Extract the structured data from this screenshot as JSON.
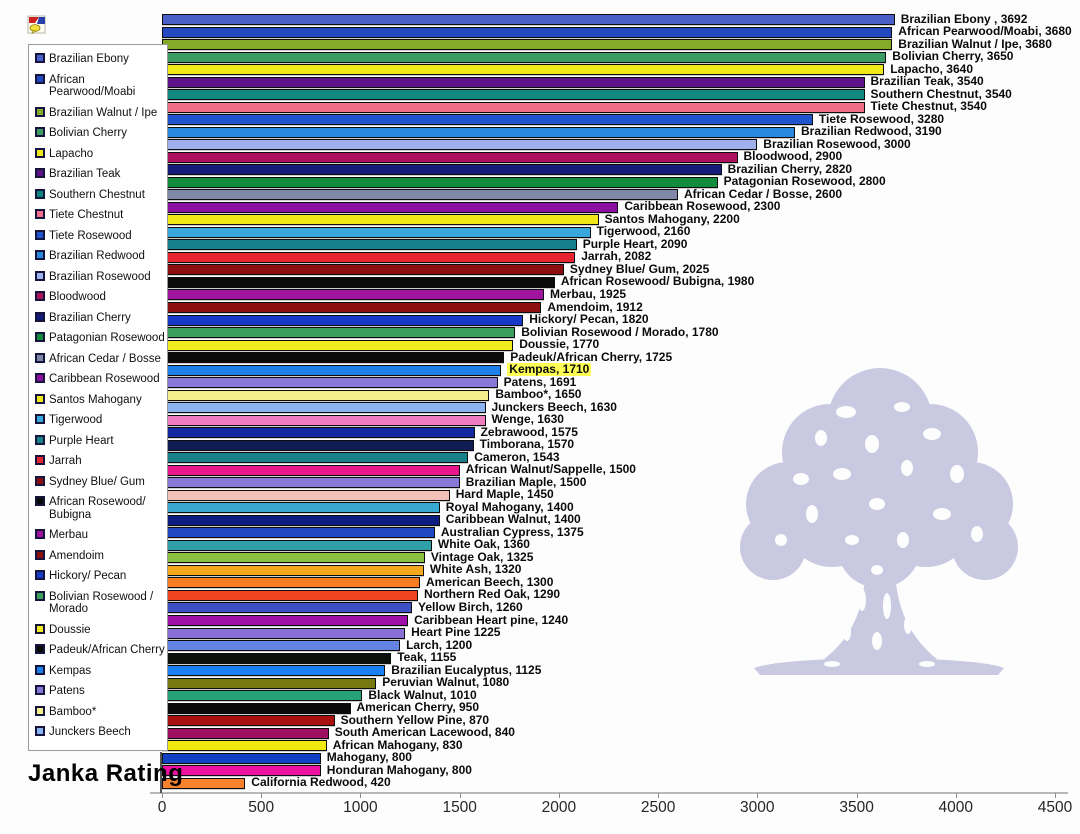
{
  "title": "Janka Rating",
  "watermark_color": "#c9c9e2",
  "chart_data": {
    "type": "bar",
    "orientation": "horizontal",
    "title": "Janka Rating",
    "xlabel": "",
    "ylabel": "",
    "xlim": [
      0,
      4500
    ],
    "x_ticks": [
      "0",
      "500",
      "1000",
      "1500",
      "2000",
      "2500",
      "3000",
      "3500",
      "4000",
      "4500"
    ],
    "grid": false,
    "legend_position": "left",
    "bars": [
      {
        "label": "Brazilian Ebony",
        "value": 3692,
        "text": "Brazilian Ebony , 3692",
        "color": "#4a5fc8",
        "highlight": false
      },
      {
        "label": "African Pearwood/Moabi",
        "value": 3680,
        "text": "African Pearwood/Moabi, 3680",
        "color": "#2448c0",
        "highlight": false
      },
      {
        "label": "Brazilian Walnut / Ipe",
        "value": 3680,
        "text": "Brazilian Walnut / Ipe, 3680",
        "color": "#84aa28",
        "highlight": false
      },
      {
        "label": "Bolivian Cherry",
        "value": 3650,
        "text": "Bolivian Cherry, 3650",
        "color": "#3c9c64",
        "highlight": false
      },
      {
        "label": "Lapacho",
        "value": 3640,
        "text": "Lapacho, 3640",
        "color": "#f0e818",
        "highlight": false
      },
      {
        "label": "Brazilian Teak",
        "value": 3540,
        "text": "Brazilian Teak, 3540",
        "color": "#5c1488",
        "highlight": false
      },
      {
        "label": "Southern Chestnut",
        "value": 3540,
        "text": "Southern Chestnut, 3540",
        "color": "#108880",
        "highlight": false
      },
      {
        "label": "Tiete Chestnut",
        "value": 3540,
        "text": "Tiete Chestnut, 3540",
        "color": "#f06e88",
        "highlight": false
      },
      {
        "label": "Tiete Rosewood",
        "value": 3280,
        "text": "Tiete Rosewood, 3280",
        "color": "#2054cc",
        "highlight": false
      },
      {
        "label": "Brazilian Redwood",
        "value": 3190,
        "text": "Brazilian Redwood, 3190",
        "color": "#2888e0",
        "highlight": false
      },
      {
        "label": "Brazilian Rosewood",
        "value": 3000,
        "text": "Brazilian Rosewood, 3000",
        "color": "#a0b0ec",
        "highlight": false
      },
      {
        "label": "Bloodwood",
        "value": 2900,
        "text": "Bloodwood, 2900",
        "color": "#b01060",
        "highlight": false
      },
      {
        "label": "Brazilian Cherry",
        "value": 2820,
        "text": "Brazilian Cherry, 2820",
        "color": "#141c78",
        "highlight": false
      },
      {
        "label": "Patagonian Rosewood",
        "value": 2800,
        "text": "Patagonian Rosewood, 2800",
        "color": "#108c3c",
        "highlight": false
      },
      {
        "label": "African Cedar / Bosse",
        "value": 2600,
        "text": "African Cedar / Bosse, 2600",
        "color": "#8088a8",
        "highlight": false
      },
      {
        "label": "Caribbean Rosewood",
        "value": 2300,
        "text": "Caribbean Rosewood, 2300",
        "color": "#8c10a0",
        "highlight": false
      },
      {
        "label": "Santos Mahogany",
        "value": 2200,
        "text": "Santos Mahogany, 2200",
        "color": "#f0e818",
        "highlight": false
      },
      {
        "label": "Tigerwood",
        "value": 2160,
        "text": "Tigerwood, 2160",
        "color": "#38a8dc",
        "highlight": false
      },
      {
        "label": "Purple Heart",
        "value": 2090,
        "text": "Purple Heart, 2090",
        "color": "#18808c",
        "highlight": false
      },
      {
        "label": "Jarrah",
        "value": 2082,
        "text": "Jarrah, 2082",
        "color": "#e82430",
        "highlight": false
      },
      {
        "label": "Sydney Blue/ Gum",
        "value": 2025,
        "text": "Sydney Blue/ Gum, 2025",
        "color": "#8c0c10",
        "highlight": false
      },
      {
        "label": "African Rosewood/ Bubigna",
        "value": 1980,
        "text": "African Rosewood/ Bubigna, 1980",
        "color": "#0a0a0a",
        "highlight": false
      },
      {
        "label": "Merbau",
        "value": 1925,
        "text": "Merbau, 1925",
        "color": "#a014a0",
        "highlight": false
      },
      {
        "label": "Amendoim",
        "value": 1912,
        "text": "Amendoim, 1912",
        "color": "#8c1010",
        "highlight": false
      },
      {
        "label": "Hickory/ Pecan",
        "value": 1820,
        "text": "Hickory/ Pecan, 1820",
        "color": "#1838c8",
        "highlight": false
      },
      {
        "label": "Bolivian Rosewood / Morado",
        "value": 1780,
        "text": "Bolivian Rosewood / Morado, 1780",
        "color": "#38a05c",
        "highlight": false
      },
      {
        "label": "Doussie",
        "value": 1770,
        "text": "Doussie, 1770",
        "color": "#f0ec20",
        "highlight": false
      },
      {
        "label": "Padeuk/African Cherry",
        "value": 1725,
        "text": "Padeuk/African Cherry, 1725",
        "color": "#0a0a0a",
        "highlight": false
      },
      {
        "label": "Kempas",
        "value": 1710,
        "text": "Kempas, 1710",
        "color": "#1c80e8",
        "highlight": true
      },
      {
        "label": "Patens",
        "value": 1691,
        "text": "Patens, 1691",
        "color": "#8878d8",
        "highlight": false
      },
      {
        "label": "Bamboo*",
        "value": 1650,
        "text": "Bamboo*, 1650",
        "color": "#f4ee8c",
        "highlight": false
      },
      {
        "label": "Junckers Beech",
        "value": 1630,
        "text": "Junckers Beech, 1630",
        "color": "#8cb4f0",
        "highlight": false
      },
      {
        "label": "Wenge",
        "value": 1630,
        "text": "Wenge, 1630",
        "color": "#f07cc0",
        "highlight": false
      },
      {
        "label": "Zebrawood",
        "value": 1575,
        "text": "Zebrawood, 1575",
        "color": "#1228a0",
        "highlight": false
      },
      {
        "label": "Timborana",
        "value": 1570,
        "text": "Timborana, 1570",
        "color": "#101c54",
        "highlight": false
      },
      {
        "label": "Cameron",
        "value": 1543,
        "text": "Cameron, 1543",
        "color": "#188088",
        "highlight": false
      },
      {
        "label": "African Walnut/Sappelle",
        "value": 1500,
        "text": "African Walnut/Sappelle, 1500",
        "color": "#e8188c",
        "highlight": false
      },
      {
        "label": "Brazilian Maple",
        "value": 1500,
        "text": "Brazilian Maple, 1500",
        "color": "#8878d8",
        "highlight": false
      },
      {
        "label": "Hard Maple",
        "value": 1450,
        "text": "Hard Maple, 1450",
        "color": "#f2c2b8",
        "highlight": false
      },
      {
        "label": "Royal Mahogany",
        "value": 1400,
        "text": "Royal Mahogany, 1400",
        "color": "#38a8d0",
        "highlight": false
      },
      {
        "label": "Caribbean Walnut",
        "value": 1400,
        "text": "Caribbean Walnut, 1400",
        "color": "#0c1c80",
        "highlight": false
      },
      {
        "label": "Australian Cypress",
        "value": 1375,
        "text": "Australian Cypress, 1375",
        "color": "#2048c4",
        "highlight": false
      },
      {
        "label": "White Oak",
        "value": 1360,
        "text": "White Oak, 1360",
        "color": "#30a0a8",
        "highlight": false
      },
      {
        "label": "Vintage Oak",
        "value": 1325,
        "text": "Vintage Oak, 1325",
        "color": "#8cc040",
        "highlight": false
      },
      {
        "label": "White Ash",
        "value": 1320,
        "text": "White Ash, 1320",
        "color": "#f8a81c",
        "highlight": false
      },
      {
        "label": "American Beech",
        "value": 1300,
        "text": "American Beech, 1300",
        "color": "#f87c20",
        "highlight": false
      },
      {
        "label": "Northern Red Oak",
        "value": 1290,
        "text": "Northern Red Oak, 1290",
        "color": "#f04420",
        "highlight": false
      },
      {
        "label": "Yellow Birch",
        "value": 1260,
        "text": "Yellow Birch, 1260",
        "color": "#3c50c4",
        "highlight": false
      },
      {
        "label": "Caribbean Heart pine",
        "value": 1240,
        "text": "Caribbean Heart pine, 1240",
        "color": "#9c10a8",
        "highlight": false
      },
      {
        "label": "Heart Pine",
        "value": 1225,
        "text": "Heart Pine 1225",
        "color": "#8870d8",
        "highlight": false
      },
      {
        "label": "Larch",
        "value": 1200,
        "text": "Larch, 1200",
        "color": "#6484e4",
        "highlight": false
      },
      {
        "label": "Teak",
        "value": 1155,
        "text": "Teak, 1155",
        "color": "#0c120a",
        "highlight": false
      },
      {
        "label": "Brazilian Eucalyptus",
        "value": 1125,
        "text": "Brazilian Eucalyptus, 1125",
        "color": "#1880f0",
        "highlight": false
      },
      {
        "label": "Peruvian Walnut",
        "value": 1080,
        "text": "Peruvian Walnut, 1080",
        "color": "#787810",
        "highlight": false
      },
      {
        "label": "Black Walnut",
        "value": 1010,
        "text": "Black Walnut, 1010",
        "color": "#28a078",
        "highlight": false
      },
      {
        "label": "American Cherry",
        "value": 950,
        "text": "American Cherry, 950",
        "color": "#0a0a0a",
        "highlight": false
      },
      {
        "label": "Southern Yellow Pine",
        "value": 870,
        "text": "Southern Yellow Pine, 870",
        "color": "#a81010",
        "highlight": false
      },
      {
        "label": "South American Lacewood",
        "value": 840,
        "text": "South American Lacewood, 840",
        "color": "#a01060",
        "highlight": false
      },
      {
        "label": "African Mahogany",
        "value": 830,
        "text": "African Mahogany, 830",
        "color": "#f0ea10",
        "highlight": false
      },
      {
        "label": "Mahogany",
        "value": 800,
        "text": "Mahogany, 800",
        "color": "#1040c4",
        "highlight": false
      },
      {
        "label": "Honduran Mahogany",
        "value": 800,
        "text": "Honduran Mahogany, 800",
        "color": "#ee10a0",
        "highlight": false
      },
      {
        "label": "California Redwood",
        "value": 420,
        "text": "California Redwood, 420",
        "color": "#f8822c",
        "highlight": false
      }
    ]
  },
  "legend": {
    "items": [
      {
        "label": "Brazilian Ebony",
        "color": "#4a5fc8"
      },
      {
        "label": "African Pearwood/Moabi",
        "color": "#2448c0"
      },
      {
        "label": "Brazilian Walnut / Ipe",
        "color": "#84aa28"
      },
      {
        "label": "Bolivian Cherry",
        "color": "#3c9c64"
      },
      {
        "label": "Lapacho",
        "color": "#f0e818"
      },
      {
        "label": "Brazilian Teak",
        "color": "#5c1488"
      },
      {
        "label": "Southern Chestnut",
        "color": "#108880"
      },
      {
        "label": "Tiete Chestnut",
        "color": "#f06e88"
      },
      {
        "label": "Tiete Rosewood",
        "color": "#2054cc"
      },
      {
        "label": "Brazilian Redwood",
        "color": "#2888e0"
      },
      {
        "label": "Brazilian Rosewood",
        "color": "#a0b0ec"
      },
      {
        "label": "Bloodwood",
        "color": "#b01060"
      },
      {
        "label": "Brazilian Cherry",
        "color": "#141c78"
      },
      {
        "label": "Patagonian Rosewood",
        "color": "#108c3c"
      },
      {
        "label": "African Cedar / Bosse",
        "color": "#8088a8"
      },
      {
        "label": "Caribbean Rosewood",
        "color": "#8c10a0"
      },
      {
        "label": "Santos Mahogany",
        "color": "#f0e818"
      },
      {
        "label": "Tigerwood",
        "color": "#38a8dc"
      },
      {
        "label": "Purple Heart",
        "color": "#18808c"
      },
      {
        "label": "Jarrah",
        "color": "#e82430"
      },
      {
        "label": "Sydney Blue/ Gum",
        "color": "#8c0c10"
      },
      {
        "label": "African Rosewood/ Bubigna",
        "color": "#0a0a0a"
      },
      {
        "label": "Merbau",
        "color": "#a014a0"
      },
      {
        "label": "Amendoim",
        "color": "#8c1010"
      },
      {
        "label": "Hickory/ Pecan",
        "color": "#1838c8"
      },
      {
        "label": "Bolivian Rosewood / Morado",
        "color": "#38a05c"
      },
      {
        "label": "Doussie",
        "color": "#f0ec20"
      },
      {
        "label": "Padeuk/African Cherry",
        "color": "#0a0a0a"
      },
      {
        "label": "Kempas",
        "color": "#1c80e8"
      },
      {
        "label": "Patens",
        "color": "#8878d8"
      },
      {
        "label": "Bamboo*",
        "color": "#f4ee8c"
      },
      {
        "label": "Junckers Beech",
        "color": "#8cb4f0"
      }
    ]
  }
}
